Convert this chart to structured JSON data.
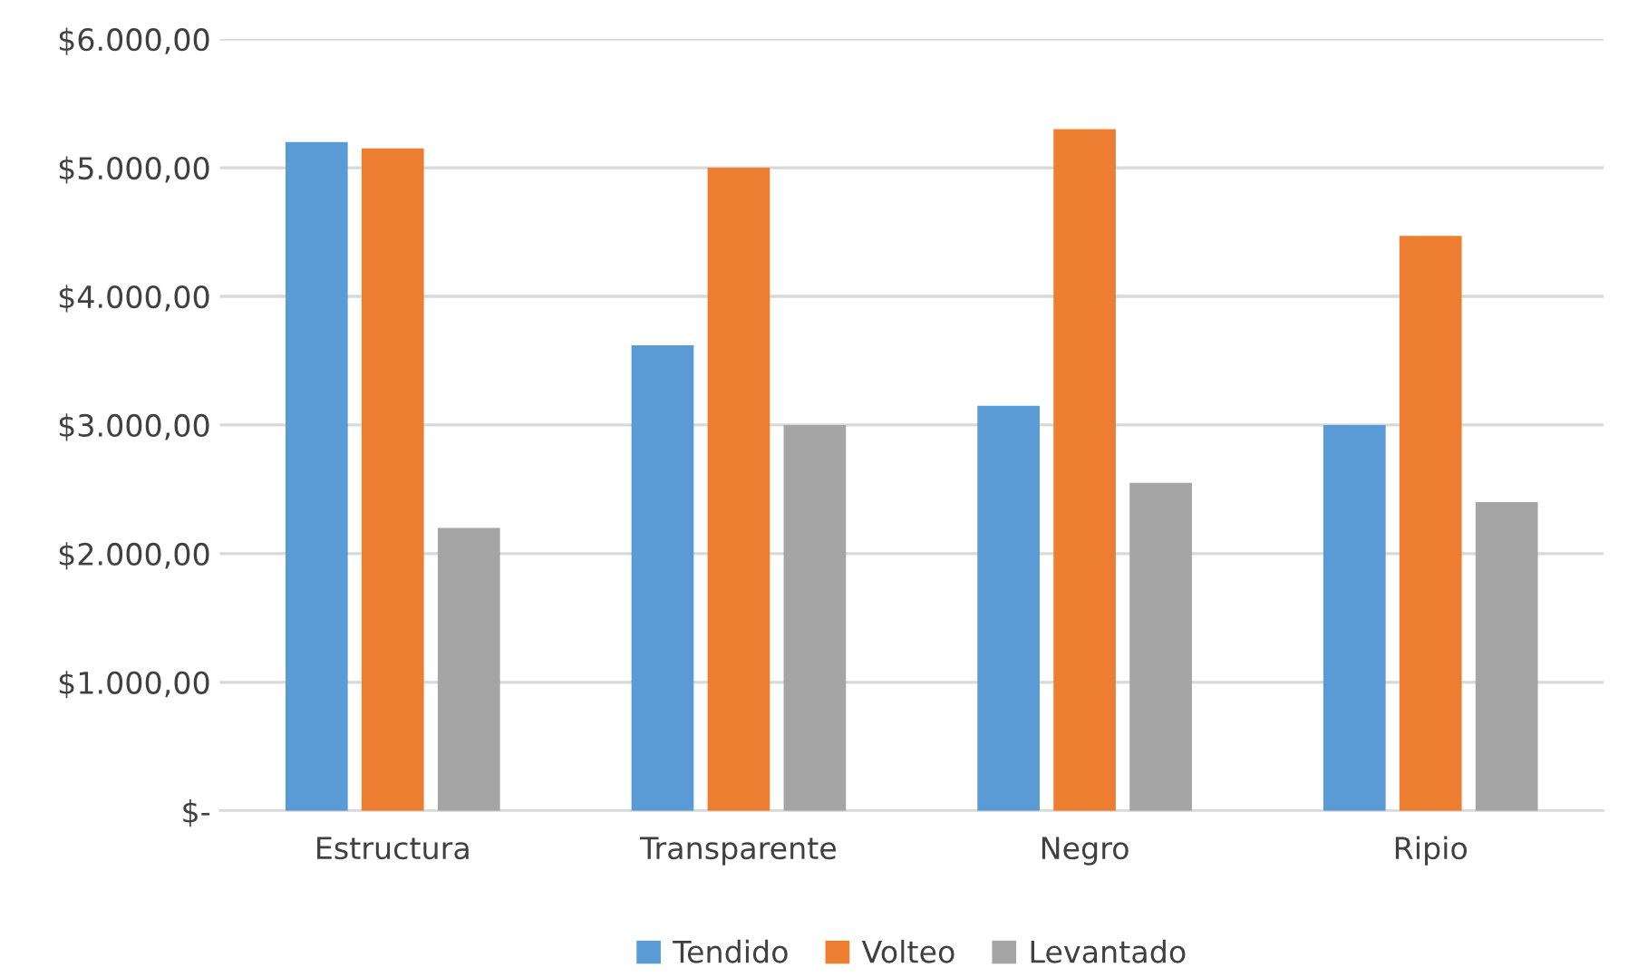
{
  "chart_data": {
    "type": "bar",
    "categories": [
      "Estructura",
      "Transparente",
      "Negro",
      "Ripio"
    ],
    "series": [
      {
        "name": "Tendido",
        "color": "#5b9bd5",
        "values": [
          5200,
          3620,
          3150,
          3000
        ]
      },
      {
        "name": "Volteo",
        "color": "#ed7d31",
        "values": [
          5150,
          5000,
          5300,
          4470
        ]
      },
      {
        "name": "Levantado",
        "color": "#a5a5a5",
        "values": [
          2200,
          3000,
          2550,
          2400
        ]
      }
    ],
    "ylim": [
      0,
      6000
    ],
    "yticks": [
      {
        "value": 0,
        "label": "$-"
      },
      {
        "value": 1000,
        "label": "$1.000,00"
      },
      {
        "value": 2000,
        "label": "$2.000,00"
      },
      {
        "value": 3000,
        "label": "$3.000,00"
      },
      {
        "value": 4000,
        "label": "$4.000,00"
      },
      {
        "value": 5000,
        "label": "$5.000,00"
      },
      {
        "value": 6000,
        "label": "$6.000,00"
      }
    ],
    "grid": "y",
    "legend": "bottom"
  }
}
